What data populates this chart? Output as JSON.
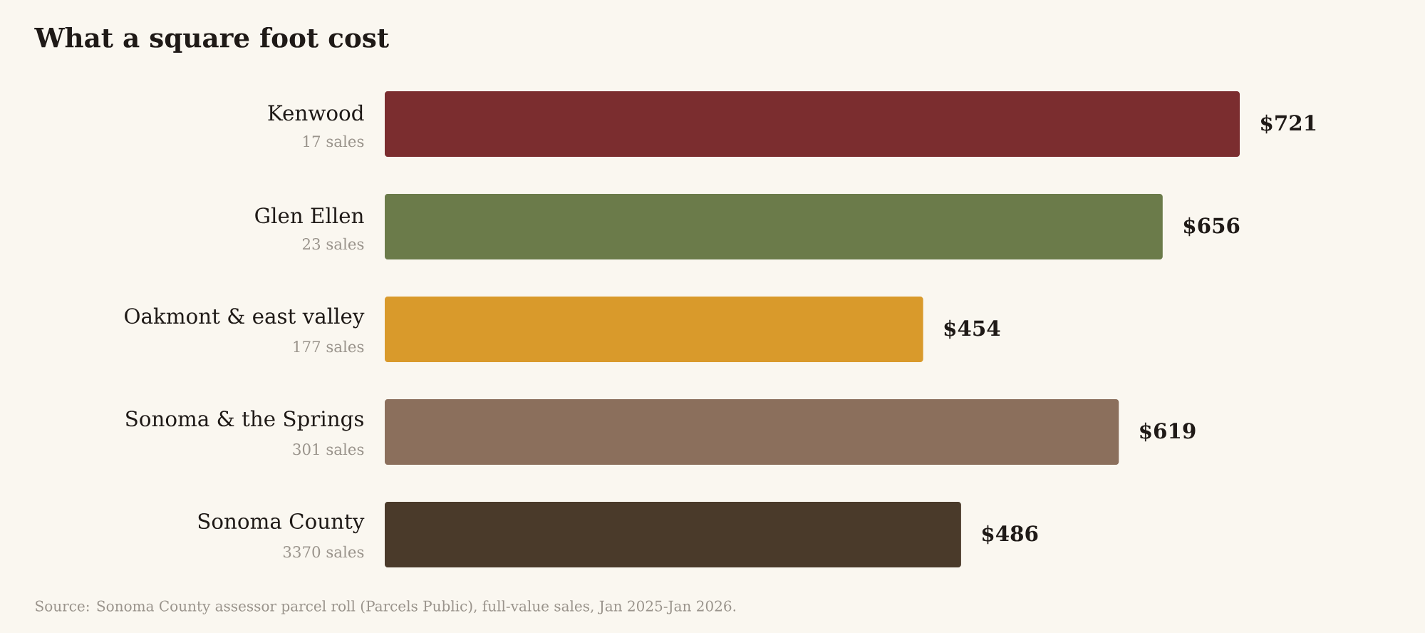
{
  "chart_data": {
    "type": "bar",
    "orientation": "horizontal",
    "title": "What a square foot cost",
    "categories": [
      "Kenwood",
      "Glen Ellen",
      "Oakmont & east valley",
      "Sonoma & the Springs",
      "Sonoma County"
    ],
    "values": [
      721,
      656,
      454,
      619,
      486
    ],
    "colors": [
      "#7b2d2f",
      "#6b7b4a",
      "#d99a2b",
      "#8b6f5c",
      "#4a3a2a"
    ],
    "value_labels": [
      "$721",
      "$656",
      "$454",
      "$619",
      "$486"
    ],
    "annotations": [
      "17 sales",
      "23 sales",
      "177 sales",
      "301 sales",
      "3370 sales",
      "Source: Sonoma County assessor parcel roll (Parcels Public), full-value sales, Jan 2025-Jan 2026."
    ]
  }
}
